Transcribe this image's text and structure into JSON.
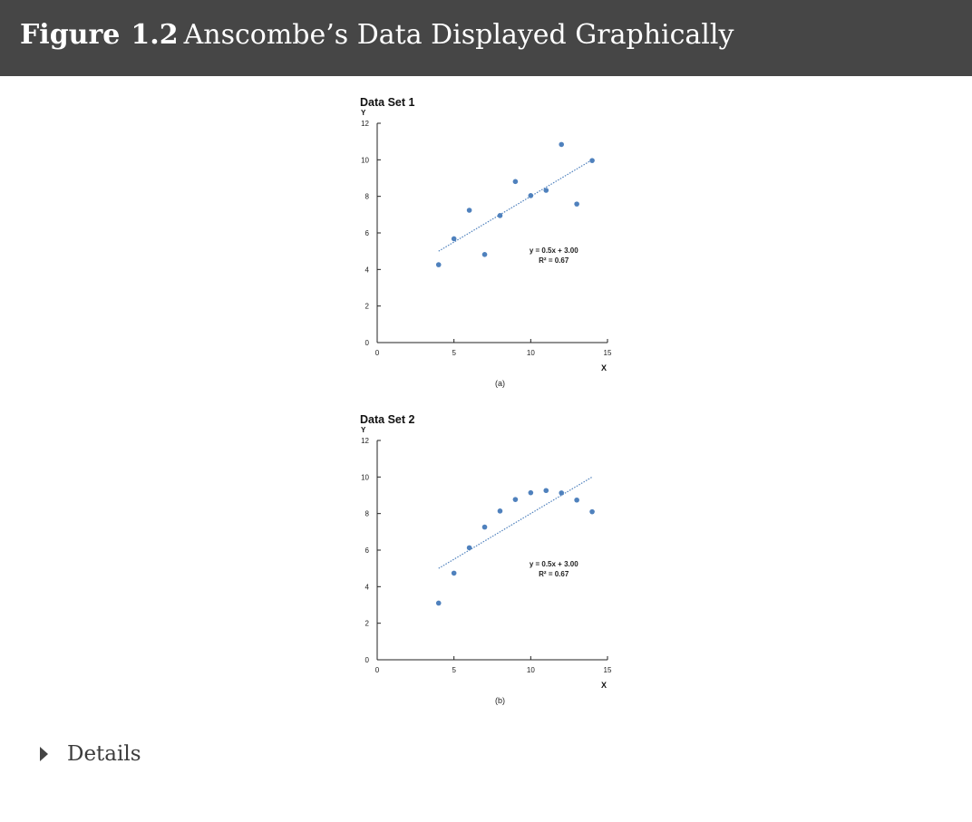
{
  "figure": {
    "label": "Figure",
    "number": "1.2",
    "title": "Anscombe’s Data Displayed Graphically"
  },
  "details": {
    "label": "Details"
  },
  "colors": {
    "header_bg": "#464646",
    "point": "#4f81bd",
    "trend": "#4f81bd"
  },
  "chart_data": [
    {
      "type": "scatter",
      "title": "Data Set 1",
      "xlabel": "X",
      "ylabel": "Y",
      "caption": "(a)",
      "xlim": [
        0,
        15
      ],
      "ylim": [
        0,
        12
      ],
      "xticks": [
        "0",
        "5",
        "10",
        "15"
      ],
      "yticks": [
        "0",
        "2",
        "4",
        "6",
        "8",
        "10",
        "12"
      ],
      "x": [
        10,
        8,
        13,
        9,
        11,
        14,
        6,
        4,
        12,
        7,
        5
      ],
      "y": [
        8.04,
        6.95,
        7.58,
        8.81,
        8.33,
        9.96,
        7.24,
        4.26,
        10.84,
        4.82,
        5.68
      ],
      "trendline": {
        "slope": 0.5,
        "intercept": 3.0,
        "x_range": [
          4,
          14
        ],
        "style": "dotted"
      },
      "equation": "y = 0.5x + 3.00",
      "r_squared": "R² = 0.67",
      "grid": false
    },
    {
      "type": "scatter",
      "title": "Data Set 2",
      "xlabel": "X",
      "ylabel": "Y",
      "caption": "(b)",
      "xlim": [
        0,
        15
      ],
      "ylim": [
        0,
        12
      ],
      "xticks": [
        "0",
        "5",
        "10",
        "15"
      ],
      "yticks": [
        "0",
        "2",
        "4",
        "6",
        "8",
        "10",
        "12"
      ],
      "x": [
        10,
        8,
        13,
        9,
        11,
        14,
        6,
        4,
        12,
        7,
        5
      ],
      "y": [
        9.14,
        8.14,
        8.74,
        8.77,
        9.26,
        8.1,
        6.13,
        3.1,
        9.13,
        7.26,
        4.74
      ],
      "trendline": {
        "slope": 0.5,
        "intercept": 3.0,
        "x_range": [
          4,
          14
        ],
        "style": "dotted"
      },
      "equation": "y = 0.5x + 3.00",
      "r_squared": "R² = 0.67",
      "grid": false
    }
  ]
}
